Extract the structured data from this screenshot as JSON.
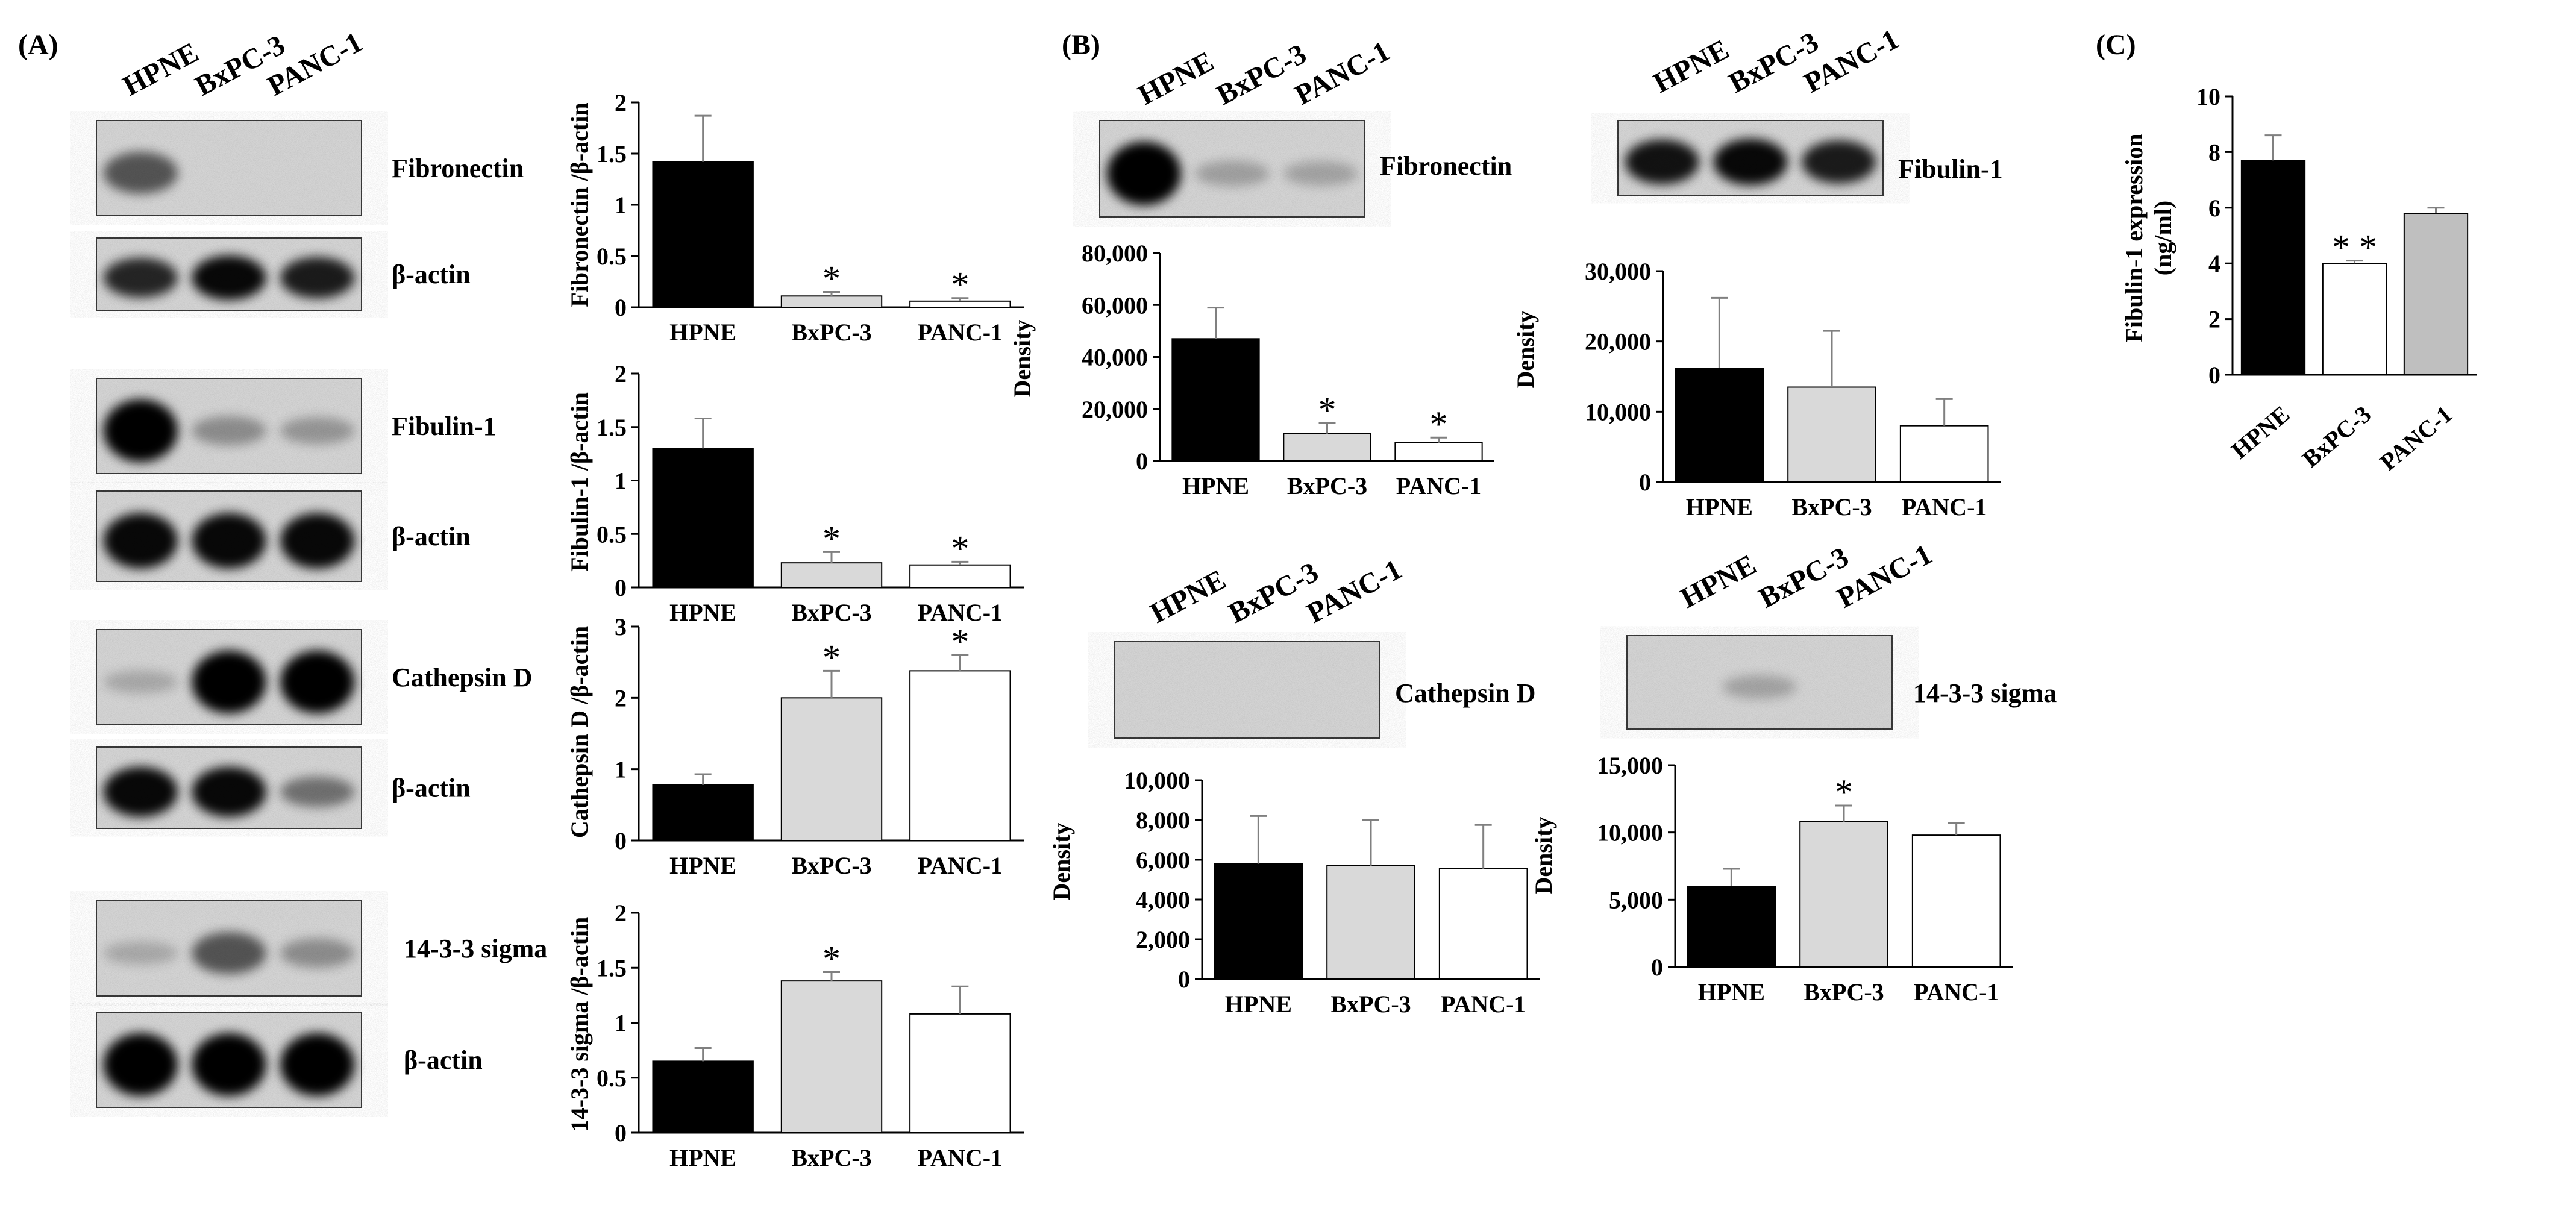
{
  "panels": {
    "A": "(A)",
    "B": "(B)",
    "C": "(C)"
  },
  "lanes": [
    "HPNE",
    "BxPC-3",
    "PANC-1"
  ],
  "blots": {
    "A": [
      {
        "label": "Fibronectin",
        "bands": [
          0.5,
          0,
          0
        ]
      },
      {
        "label": "β-actin",
        "bands": [
          0.75,
          0.9,
          0.8
        ]
      },
      {
        "label": "Fibulin-1",
        "bands": [
          1,
          0.2,
          0.15
        ]
      },
      {
        "label": "β-actin",
        "bands": [
          0.9,
          0.9,
          0.9
        ]
      },
      {
        "label": "Cathepsin D",
        "bands": [
          0.05,
          1,
          1
        ]
      },
      {
        "label": "β-actin",
        "bands": [
          0.9,
          0.9,
          0.35
        ]
      },
      {
        "label": "14-3-3 sigma",
        "bands": [
          0.05,
          0.5,
          0.2
        ]
      },
      {
        "label": "β-actin",
        "bands": [
          1,
          1,
          1
        ]
      }
    ],
    "B": [
      {
        "label": "Fibronectin",
        "bands": [
          1,
          0.1,
          0.08
        ]
      },
      {
        "label": "Fibulin-1",
        "bands": [
          0.85,
          0.9,
          0.8
        ]
      },
      {
        "label": "Cathepsin D",
        "bands": [
          0,
          0,
          0
        ]
      },
      {
        "label": "14-3-3 sigma",
        "bands": [
          0,
          0.08,
          0
        ]
      }
    ]
  },
  "chart_data": [
    {
      "type": "bar",
      "panel": "A",
      "categories": [
        "HPNE",
        "BxPC-3",
        "PANC-1"
      ],
      "values": [
        1.42,
        0.11,
        0.06
      ],
      "errors": [
        0.45,
        0.04,
        0.03
      ],
      "significant": [
        "",
        "*",
        "*"
      ],
      "ylabel": "Fibronectin /β-actin",
      "ylim": [
        0,
        2
      ],
      "yticks": [
        "0",
        "0.5",
        "1",
        "1.5",
        "2"
      ],
      "colors": [
        "#000000",
        "#d9d9d9",
        "#ffffff"
      ]
    },
    {
      "type": "bar",
      "panel": "A",
      "categories": [
        "HPNE",
        "BxPC-3",
        "PANC-1"
      ],
      "values": [
        1.3,
        0.23,
        0.21
      ],
      "errors": [
        0.28,
        0.1,
        0.03
      ],
      "significant": [
        "",
        "*",
        "*"
      ],
      "ylabel": "Fibulin-1 /β-actin",
      "ylim": [
        0,
        2
      ],
      "yticks": [
        "0",
        "0.5",
        "1",
        "1.5",
        "2"
      ],
      "colors": [
        "#000000",
        "#d9d9d9",
        "#ffffff"
      ]
    },
    {
      "type": "bar",
      "panel": "A",
      "categories": [
        "HPNE",
        "BxPC-3",
        "PANC-1"
      ],
      "values": [
        0.78,
        2.0,
        2.38
      ],
      "errors": [
        0.15,
        0.38,
        0.22
      ],
      "significant": [
        "",
        "*",
        "*"
      ],
      "ylabel": "Cathepsin D /β-actin",
      "ylim": [
        0,
        3
      ],
      "yticks": [
        "0",
        "1",
        "2",
        "3"
      ],
      "colors": [
        "#000000",
        "#d9d9d9",
        "#ffffff"
      ]
    },
    {
      "type": "bar",
      "panel": "A",
      "categories": [
        "HPNE",
        "BxPC-3",
        "PANC-1"
      ],
      "values": [
        0.65,
        1.38,
        1.08
      ],
      "errors": [
        0.12,
        0.08,
        0.25
      ],
      "significant": [
        "",
        "*",
        ""
      ],
      "ylabel": "14-3-3 sigma /β-actin",
      "ylim": [
        0,
        2
      ],
      "yticks": [
        "0",
        "0.5",
        "1",
        "1.5",
        "2"
      ],
      "colors": [
        "#000000",
        "#d9d9d9",
        "#ffffff"
      ]
    },
    {
      "type": "bar",
      "panel": "B",
      "categories": [
        "HPNE",
        "BxPC-3",
        "PANC-1"
      ],
      "values": [
        47000,
        10500,
        7000
      ],
      "errors": [
        12000,
        4000,
        2000
      ],
      "significant": [
        "",
        "*",
        "*"
      ],
      "ylabel": "Density",
      "ylim": [
        0,
        80000
      ],
      "yticks": [
        "0",
        "20,000",
        "40,000",
        "60,000",
        "80,000"
      ],
      "colors": [
        "#000000",
        "#d9d9d9",
        "#ffffff"
      ]
    },
    {
      "type": "bar",
      "panel": "B",
      "categories": [
        "HPNE",
        "BxPC-3",
        "PANC-1"
      ],
      "values": [
        16200,
        13500,
        8000
      ],
      "errors": [
        10000,
        8000,
        3800
      ],
      "significant": [
        "",
        "",
        ""
      ],
      "ylabel": "Density",
      "ylim": [
        0,
        30000
      ],
      "yticks": [
        "0",
        "10,000",
        "20,000",
        "30,000"
      ],
      "colors": [
        "#000000",
        "#d9d9d9",
        "#ffffff"
      ]
    },
    {
      "type": "bar",
      "panel": "B",
      "categories": [
        "HPNE",
        "BxPC-3",
        "PANC-1"
      ],
      "values": [
        5800,
        5700,
        5550
      ],
      "errors": [
        2400,
        2300,
        2200
      ],
      "significant": [
        "",
        "",
        ""
      ],
      "ylabel": "Density",
      "ylim": [
        0,
        10000
      ],
      "yticks": [
        "0",
        "2,000",
        "4,000",
        "6,000",
        "8,000",
        "10,000"
      ],
      "colors": [
        "#000000",
        "#d9d9d9",
        "#ffffff"
      ]
    },
    {
      "type": "bar",
      "panel": "B",
      "categories": [
        "HPNE",
        "BxPC-3",
        "PANC-1"
      ],
      "values": [
        6000,
        10800,
        9800
      ],
      "errors": [
        1300,
        1200,
        900
      ],
      "significant": [
        "",
        "*",
        ""
      ],
      "ylabel": "Density",
      "ylim": [
        0,
        15000
      ],
      "yticks": [
        "0",
        "5,000",
        "10,000",
        "15,000"
      ],
      "colors": [
        "#000000",
        "#d9d9d9",
        "#ffffff"
      ]
    },
    {
      "type": "bar",
      "panel": "C",
      "categories": [
        "HPNE",
        "BxPC-3",
        "PANC-1"
      ],
      "values": [
        7.7,
        4.0,
        5.8
      ],
      "errors": [
        0.9,
        0.1,
        0.2
      ],
      "significant": [
        "",
        "* *",
        ""
      ],
      "ylabel": "Fibulin-1 expression\n(ng/ml)",
      "ylim": [
        0,
        10
      ],
      "yticks": [
        "0",
        "2",
        "4",
        "6",
        "8",
        "10"
      ],
      "colors": [
        "#000000",
        "#ffffff",
        "#bfbfbf"
      ]
    }
  ]
}
